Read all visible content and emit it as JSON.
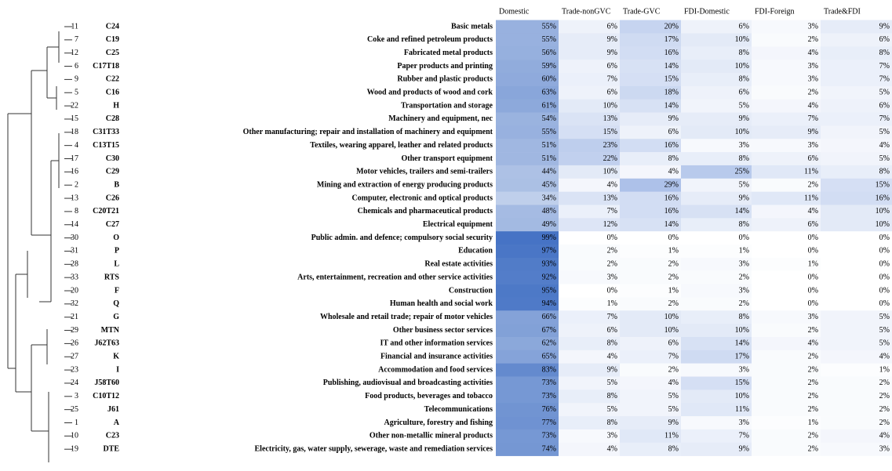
{
  "table": {
    "header": [
      "Domestic",
      "Trade-nonGVC",
      "Trade-GVC",
      "FDI-Domestic",
      "FDI-Foreign",
      "Trade&FDI"
    ],
    "rows": [
      [
        "11",
        "C24",
        "Basic metals",
        "55%",
        "6%",
        "20%",
        "6%",
        "3%",
        "9%"
      ],
      [
        "7",
        "C19",
        "Coke and refined petroleum products",
        "55%",
        "9%",
        "17%",
        "10%",
        "2%",
        "6%"
      ],
      [
        "12",
        "C25",
        "Fabricated metal products",
        "56%",
        "9%",
        "16%",
        "8%",
        "4%",
        "8%"
      ],
      [
        "6",
        "C17T18",
        "Paper products and printing",
        "59%",
        "6%",
        "14%",
        "10%",
        "3%",
        "7%"
      ],
      [
        "9",
        "C22",
        "Rubber and plastic products",
        "60%",
        "7%",
        "15%",
        "8%",
        "3%",
        "7%"
      ],
      [
        "5",
        "C16",
        "Wood and products of wood and cork",
        "63%",
        "6%",
        "18%",
        "6%",
        "2%",
        "5%"
      ],
      [
        "22",
        "H",
        "Transportation and storage",
        "61%",
        "10%",
        "14%",
        "5%",
        "4%",
        "6%"
      ],
      [
        "15",
        "C28",
        "Machinery and equipment, nec",
        "54%",
        "13%",
        "9%",
        "9%",
        "7%",
        "7%"
      ],
      [
        "18",
        "C31T33",
        "Other manufacturing; repair and installation of machinery and equipment",
        "55%",
        "15%",
        "6%",
        "10%",
        "9%",
        "5%"
      ],
      [
        "4",
        "C13T15",
        "Textiles, wearing apparel, leather and related products",
        "51%",
        "23%",
        "16%",
        "3%",
        "3%",
        "4%"
      ],
      [
        "17",
        "C30",
        "Other transport equipment",
        "51%",
        "22%",
        "8%",
        "8%",
        "6%",
        "5%"
      ],
      [
        "16",
        "C29",
        "Motor vehicles, trailers and semi-trailers",
        "44%",
        "10%",
        "4%",
        "25%",
        "11%",
        "8%"
      ],
      [
        "2",
        "B",
        "Mining and extraction of energy producing products",
        "45%",
        "4%",
        "29%",
        "5%",
        "2%",
        "15%"
      ],
      [
        "13",
        "C26",
        "Computer, electronic and optical products",
        "34%",
        "13%",
        "16%",
        "9%",
        "11%",
        "16%"
      ],
      [
        "8",
        "C20T21",
        "Chemicals and pharmaceutical products",
        "48%",
        "7%",
        "16%",
        "14%",
        "4%",
        "10%"
      ],
      [
        "14",
        "C27",
        "Electrical equipment",
        "49%",
        "12%",
        "14%",
        "8%",
        "6%",
        "10%"
      ],
      [
        "30",
        "O",
        "Public admin. and defence; compulsory social security",
        "99%",
        "0%",
        "0%",
        "0%",
        "0%",
        "0%"
      ],
      [
        "31",
        "P",
        "Education",
        "97%",
        "2%",
        "1%",
        "1%",
        "0%",
        "0%"
      ],
      [
        "28",
        "L",
        "Real estate activities",
        "93%",
        "2%",
        "2%",
        "3%",
        "1%",
        "0%"
      ],
      [
        "33",
        "RTS",
        "Arts, entertainment, recreation and other service activities",
        "92%",
        "3%",
        "2%",
        "2%",
        "0%",
        "0%"
      ],
      [
        "20",
        "F",
        "Construction",
        "95%",
        "0%",
        "1%",
        "3%",
        "0%",
        "0%"
      ],
      [
        "32",
        "Q",
        "Human health and social work",
        "94%",
        "1%",
        "2%",
        "2%",
        "0%",
        "0%"
      ],
      [
        "21",
        "G",
        "Wholesale and retail trade; repair of motor vehicles",
        "66%",
        "7%",
        "10%",
        "8%",
        "3%",
        "5%"
      ],
      [
        "29",
        "MTN",
        "Other business sector services",
        "67%",
        "6%",
        "10%",
        "10%",
        "2%",
        "5%"
      ],
      [
        "26",
        "J62T63",
        "IT and other information services",
        "62%",
        "8%",
        "6%",
        "14%",
        "4%",
        "5%"
      ],
      [
        "27",
        "K",
        "Financial and insurance activities",
        "65%",
        "4%",
        "7%",
        "17%",
        "2%",
        "4%"
      ],
      [
        "23",
        "I",
        "Accommodation and food services",
        "83%",
        "9%",
        "2%",
        "3%",
        "2%",
        "1%"
      ],
      [
        "24",
        "J58T60",
        "Publishing, audiovisual and broadcasting activities",
        "73%",
        "5%",
        "4%",
        "15%",
        "2%",
        "2%"
      ],
      [
        "3",
        "C10T12",
        "Food products, beverages and tobacco",
        "73%",
        "8%",
        "5%",
        "10%",
        "2%",
        "2%"
      ],
      [
        "25",
        "J61",
        "Telecommunications",
        "76%",
        "5%",
        "5%",
        "11%",
        "2%",
        "2%"
      ],
      [
        "1",
        "A",
        "Agriculture, forestry and fishing",
        "77%",
        "8%",
        "9%",
        "3%",
        "1%",
        "2%"
      ],
      [
        "10",
        "C23",
        "Other non-metallic mineral products",
        "73%",
        "3%",
        "11%",
        "7%",
        "2%",
        "4%"
      ],
      [
        "19",
        "DTE",
        "Electricity, gas, water supply, sewerage, waste and remediation services",
        "74%",
        "4%",
        "8%",
        "9%",
        "2%",
        "3%"
      ]
    ]
  }
}
